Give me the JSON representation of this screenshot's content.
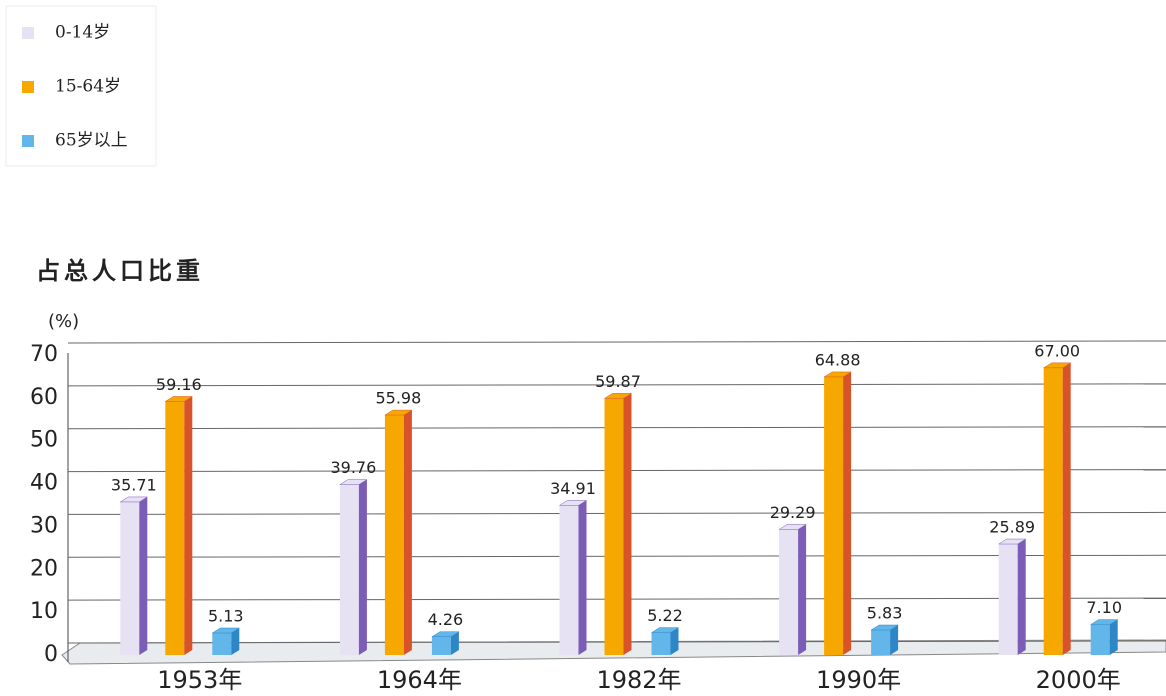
{
  "chart_data": {
    "type": "bar3d",
    "title": "占总人口比重",
    "y_label": "(%)",
    "categories": [
      "1953年",
      "1964年",
      "1982年",
      "1990年",
      "2000年"
    ],
    "series": [
      {
        "name": "0-14岁",
        "color": "#e6e2f4",
        "side_color": "#7b5cb6",
        "values": [
          35.71,
          39.76,
          34.91,
          29.29,
          25.89
        ],
        "value_labels": [
          "35.71",
          "39.76",
          "34.91",
          "29.29",
          "25.89"
        ]
      },
      {
        "name": "15-64岁",
        "color": "#f7a800",
        "side_color": "#d9532a",
        "values": [
          59.16,
          55.98,
          59.87,
          64.88,
          67.0
        ],
        "value_labels": [
          "59.16",
          "55.98",
          "59.87",
          "64.88",
          "67.00"
        ]
      },
      {
        "name": "65岁以上",
        "color": "#62b6ea",
        "side_color": "#2d86c6",
        "values": [
          5.13,
          4.26,
          5.22,
          5.83,
          7.1
        ],
        "value_labels": [
          "5.13",
          "4.26",
          "5.22",
          "5.83",
          "7.10"
        ]
      }
    ],
    "ylim": [
      0,
      70
    ],
    "yticks": [
      0,
      10,
      20,
      30,
      40,
      50,
      60,
      70
    ],
    "grid": true,
    "legend": "top-left"
  }
}
